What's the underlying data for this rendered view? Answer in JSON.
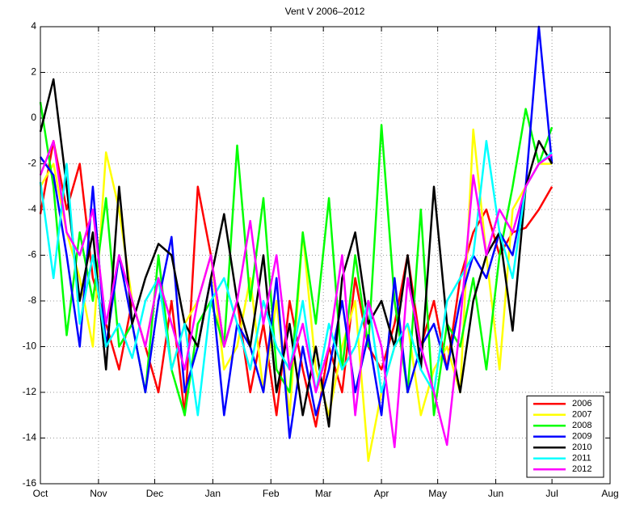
{
  "chart_data": {
    "type": "line",
    "title": "Vent V 2006–2012",
    "x": [
      0,
      7,
      14,
      21,
      28,
      35,
      42,
      49,
      56,
      63,
      70,
      77,
      84,
      91,
      98,
      105,
      112,
      119,
      126,
      133,
      140,
      147,
      154,
      161,
      168,
      175,
      182,
      189,
      196,
      203,
      210,
      217,
      224,
      231,
      238,
      245,
      252,
      259,
      266,
      273
    ],
    "series": [
      {
        "name": "2006",
        "color": "#ff0000",
        "values": [
          -4.2,
          -1,
          -4,
          -2,
          -7,
          -9,
          -11,
          -8,
          -10,
          -12,
          -8,
          -13,
          -3,
          -6,
          -10,
          -8,
          -12,
          -9,
          -13,
          -8,
          -11,
          -13.5,
          -10,
          -12,
          -7,
          -10,
          -11,
          -9,
          -6,
          -10,
          -8,
          -11,
          -7,
          -5,
          -4,
          -6,
          -5,
          -4.8,
          -4,
          -3
        ]
      },
      {
        "name": "2007",
        "color": "#ffff00",
        "values": [
          -3,
          -2,
          -5,
          -7,
          -10,
          -1.5,
          -4,
          -8,
          -10,
          -7,
          -11,
          -9,
          -8,
          -6,
          -11,
          -10,
          -7,
          -12,
          -8,
          -13,
          -5,
          -11,
          -13,
          -10,
          -8,
          -15,
          -12,
          -10,
          -9,
          -13,
          -11,
          -10,
          -12,
          -0.5,
          -6,
          -11,
          -4,
          -3,
          -2,
          -2
        ]
      },
      {
        "name": "2008",
        "color": "#00ff00",
        "values": [
          0.7,
          -3,
          -9.5,
          -5,
          -8,
          -3.5,
          -10,
          -9,
          -12,
          -6,
          -11,
          -13,
          -9,
          -8,
          -10,
          -1.2,
          -8,
          -3.5,
          -11,
          -12,
          -5,
          -9,
          -3.5,
          -11,
          -6,
          -10,
          -0.3,
          -8,
          -12,
          -4,
          -13,
          -9,
          -10,
          -7,
          -11,
          -6,
          -3,
          0.4,
          -2,
          -0.4
        ]
      },
      {
        "name": "2009",
        "color": "#0000ff",
        "values": [
          -1.7,
          -2.5,
          -6,
          -10,
          -3,
          -10,
          -6,
          -9,
          -12,
          -8,
          -5.2,
          -12,
          -10,
          -7,
          -13,
          -9,
          -10,
          -12,
          -7,
          -14,
          -10,
          -13,
          -11,
          -8,
          -12,
          -9.5,
          -13,
          -7,
          -12,
          -10,
          -9,
          -11,
          -8,
          -6,
          -7,
          -5,
          -6,
          -3,
          4,
          -2
        ]
      },
      {
        "name": "2010",
        "color": "#000000",
        "values": [
          -0.6,
          1.7,
          -3,
          -8,
          -5,
          -11,
          -3,
          -9,
          -7,
          -5.5,
          -6,
          -9,
          -10,
          -7,
          -4.2,
          -8,
          -10,
          -6,
          -12,
          -9,
          -13,
          -10,
          -13.5,
          -7,
          -5,
          -9,
          -8,
          -10,
          -6,
          -11,
          -3,
          -9,
          -12,
          -8,
          -6,
          -5,
          -9.3,
          -3,
          -1,
          -2
        ]
      },
      {
        "name": "2011",
        "color": "#00ffff",
        "values": [
          -2.8,
          -7,
          -2,
          -9,
          -6,
          -10,
          -9,
          -10.5,
          -8,
          -7,
          -11,
          -9,
          -13,
          -8,
          -7,
          -9,
          -11,
          -8,
          -10,
          -11,
          -8,
          -12,
          -9,
          -11,
          -10,
          -8,
          -12,
          -10,
          -9,
          -11,
          -12,
          -8,
          -7,
          -6,
          -1,
          -5,
          -7,
          -3,
          -2,
          -1.5
        ]
      },
      {
        "name": "2012",
        "color": "#ff00ff",
        "values": [
          -2.5,
          -1,
          -5,
          -6,
          -4,
          -9,
          -6,
          -8,
          -10,
          -7,
          -9,
          -11,
          -8,
          -6,
          -10,
          -8,
          -4.5,
          -9,
          -6,
          -11,
          -9,
          -12,
          -10,
          -6,
          -13,
          -8,
          -10,
          -14.4,
          -7,
          -10,
          -12,
          -14.3,
          -9,
          -2.5,
          -6,
          -4,
          -5,
          -3,
          -2,
          -1.6
        ]
      }
    ],
    "xlim": [
      0,
      304
    ],
    "xticks": [
      {
        "value": 0,
        "label": "Oct"
      },
      {
        "value": 31,
        "label": "Nov"
      },
      {
        "value": 61,
        "label": "Dec"
      },
      {
        "value": 92,
        "label": "Jan"
      },
      {
        "value": 123,
        "label": "Feb"
      },
      {
        "value": 151,
        "label": "Mar"
      },
      {
        "value": 182,
        "label": "Apr"
      },
      {
        "value": 212,
        "label": "May"
      },
      {
        "value": 243,
        "label": "Jun"
      },
      {
        "value": 273,
        "label": "Jul"
      },
      {
        "value": 304,
        "label": "Aug"
      }
    ],
    "ylim": [
      -16,
      4
    ],
    "yticks": [
      -16,
      -14,
      -12,
      -10,
      -8,
      -6,
      -4,
      -2,
      0,
      2,
      4
    ],
    "grid": true,
    "legend": "lower right"
  }
}
